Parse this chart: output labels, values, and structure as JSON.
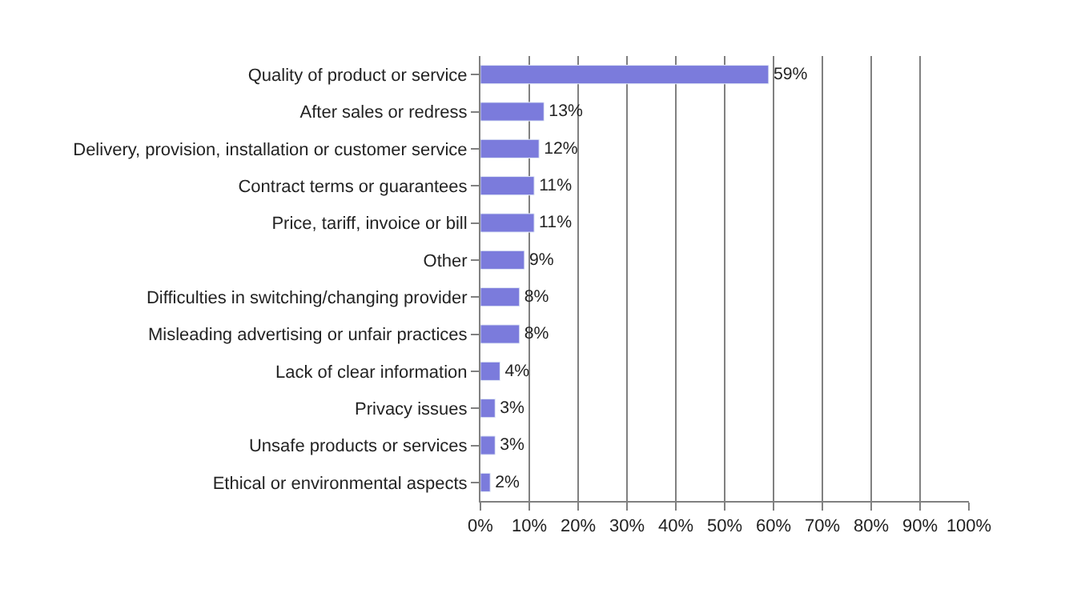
{
  "chart_data": {
    "type": "bar",
    "orientation": "horizontal",
    "categories": [
      "Quality of product or service",
      "After sales or redress",
      "Delivery, provision, installation or customer service",
      "Contract terms or guarantees",
      "Price, tariff, invoice or bill",
      "Other",
      "Difficulties in switching/changing provider",
      "Misleading advertising or unfair practices",
      "Lack of clear information",
      "Privacy issues",
      "Unsafe products or services",
      "Ethical or environmental aspects"
    ],
    "values": [
      59,
      13,
      12,
      11,
      11,
      9,
      8,
      8,
      4,
      3,
      3,
      2
    ],
    "value_labels": [
      "59%",
      "13%",
      "12%",
      "11%",
      "11%",
      "9%",
      "8%",
      "8%",
      "4%",
      "3%",
      "3%",
      "2%"
    ],
    "color": "#7b7bdc",
    "xlim": [
      0,
      100
    ],
    "xticks": [
      {
        "value": 0,
        "label": "0%"
      },
      {
        "value": 10,
        "label": "10%"
      },
      {
        "value": 20,
        "label": "20%"
      },
      {
        "value": 30,
        "label": "30%"
      },
      {
        "value": 40,
        "label": "40%"
      },
      {
        "value": 50,
        "label": "50%"
      },
      {
        "value": 60,
        "label": "60%"
      },
      {
        "value": 70,
        "label": "70%"
      },
      {
        "value": 80,
        "label": "80%"
      },
      {
        "value": 90,
        "label": "90%"
      },
      {
        "value": 100,
        "label": "100%"
      }
    ],
    "grid": "x",
    "legend": false
  }
}
